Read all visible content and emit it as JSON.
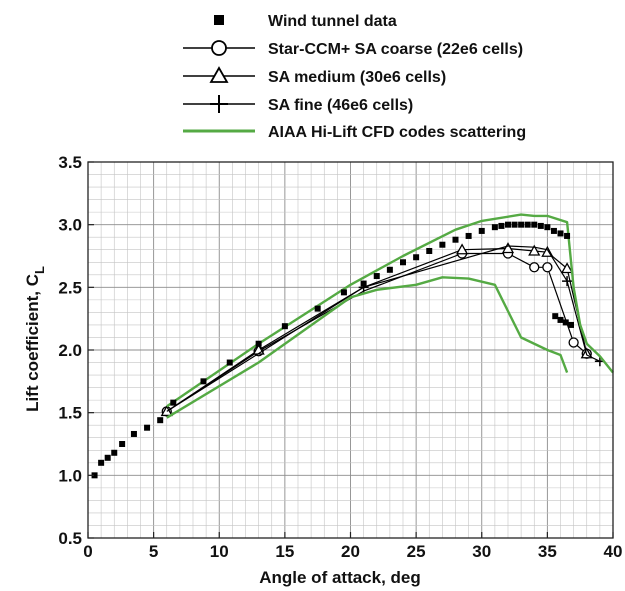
{
  "chart_data": {
    "type": "line",
    "xlabel": "Angle of attack, deg",
    "ylabel_main": "Lift coefficient, C",
    "ylabel_sub": "L",
    "xlim": [
      0,
      40
    ],
    "ylim": [
      0.5,
      3.5
    ],
    "x_ticks": [
      0,
      5,
      10,
      15,
      20,
      25,
      30,
      35,
      40
    ],
    "y_ticks": [
      0.5,
      1.0,
      1.5,
      2.0,
      2.5,
      3.0,
      3.5
    ],
    "x_tick_labels": [
      "0",
      "5",
      "10",
      "15",
      "20",
      "25",
      "30",
      "35",
      "40"
    ],
    "y_tick_labels": [
      "0.5",
      "1.0",
      "1.5",
      "2.0",
      "2.5",
      "3.0",
      "3.5"
    ],
    "grid": true,
    "legend_position": "top",
    "legend": [
      {
        "label": "Wind tunnel data",
        "marker": "square",
        "line": false,
        "color": "#000000"
      },
      {
        "label": "Star-CCM+ SA coarse (22e6 cells)",
        "marker": "circle",
        "line": true,
        "color": "#000000"
      },
      {
        "label": "SA medium (30e6 cells)",
        "marker": "triangle",
        "line": true,
        "color": "#000000"
      },
      {
        "label": "SA fine (46e6 cells)",
        "marker": "plus",
        "line": true,
        "color": "#000000"
      },
      {
        "label": "AIAA Hi-Lift CFD codes scattering",
        "marker": "none",
        "line": true,
        "color": "#55aa44"
      }
    ],
    "series": [
      {
        "name": "Wind tunnel data",
        "style": "marker",
        "marker": "square",
        "color": "#000000",
        "x": [
          0.5,
          1.0,
          1.5,
          2.0,
          2.6,
          3.5,
          4.5,
          5.5,
          6.5,
          8.8,
          10.8,
          13,
          15,
          17.5,
          19.5,
          21,
          22,
          23,
          24,
          25,
          26,
          27,
          28,
          29,
          30,
          31,
          31.5,
          32,
          32.5,
          33,
          33.5,
          34,
          34.5,
          35,
          35.5,
          36,
          36.5
        ],
        "y": [
          1.0,
          1.1,
          1.14,
          1.18,
          1.25,
          1.33,
          1.38,
          1.44,
          1.58,
          1.75,
          1.9,
          2.05,
          2.19,
          2.33,
          2.46,
          2.53,
          2.59,
          2.64,
          2.7,
          2.74,
          2.79,
          2.84,
          2.88,
          2.91,
          2.95,
          2.98,
          2.99,
          3.0,
          3.0,
          3.0,
          3.0,
          3.0,
          2.99,
          2.98,
          2.95,
          2.93,
          2.91
        ]
      },
      {
        "name": "Wind tunnel data",
        "style": "marker",
        "marker": "square",
        "color": "#000000",
        "x": [
          35.6,
          36.0,
          36.4,
          36.8
        ],
        "y": [
          2.27,
          2.24,
          2.22,
          2.2
        ]
      },
      {
        "name": "Star-CCM+ SA coarse (22e6 cells)",
        "style": "line",
        "marker": "circle",
        "color": "#000000",
        "x": [
          6,
          13,
          21,
          28.5,
          32,
          34,
          35,
          37,
          38
        ],
        "y": [
          1.51,
          1.99,
          2.47,
          2.77,
          2.77,
          2.66,
          2.66,
          2.06,
          1.97
        ],
        "marker_x": [
          6,
          13,
          28.5,
          32,
          34,
          35,
          37,
          38
        ],
        "marker_y": [
          1.51,
          1.99,
          2.77,
          2.77,
          2.66,
          2.66,
          2.06,
          1.97
        ]
      },
      {
        "name": "SA medium (30e6 cells)",
        "style": "line",
        "marker": "triangle",
        "color": "#000000",
        "x": [
          6,
          13,
          21,
          28.5,
          32,
          34,
          35,
          36.5,
          38
        ],
        "y": [
          1.51,
          2.0,
          2.5,
          2.8,
          2.81,
          2.79,
          2.78,
          2.65,
          1.97
        ],
        "marker_x": [
          6,
          13,
          28.5,
          32,
          34,
          35,
          36.5,
          38
        ],
        "marker_y": [
          1.51,
          2.0,
          2.8,
          2.81,
          2.79,
          2.78,
          2.65,
          1.97
        ]
      },
      {
        "name": "SA fine (46e6 cells)",
        "style": "line",
        "marker": "plus",
        "color": "#000000",
        "x": [
          6,
          21,
          32,
          34,
          35,
          36.5,
          38,
          39
        ],
        "y": [
          1.51,
          2.5,
          2.83,
          2.82,
          2.8,
          2.55,
          1.96,
          1.91
        ],
        "marker_x": [
          21,
          36.5,
          39
        ],
        "marker_y": [
          2.5,
          2.55,
          1.91
        ]
      },
      {
        "name": "AIAA Hi-Lift CFD codes scattering",
        "style": "line",
        "marker": "none",
        "color": "#55aa44",
        "x": [
          6,
          13,
          20,
          24,
          28,
          30,
          33,
          34,
          35,
          36.5,
          37,
          37.5,
          38,
          39,
          40
        ],
        "y": [
          1.55,
          2.05,
          2.52,
          2.75,
          2.96,
          3.03,
          3.08,
          3.07,
          3.07,
          3.02,
          2.5,
          2.2,
          2.05,
          1.95,
          1.82
        ]
      },
      {
        "name": "AIAA Hi-Lift CFD codes scattering",
        "style": "line",
        "marker": "none",
        "color": "#55aa44",
        "x": [
          6,
          13,
          20,
          22,
          25,
          27,
          29,
          31,
          33,
          35,
          36,
          36.5
        ],
        "y": [
          1.46,
          1.9,
          2.42,
          2.48,
          2.52,
          2.58,
          2.57,
          2.52,
          2.1,
          2.0,
          1.96,
          1.82
        ]
      }
    ]
  }
}
